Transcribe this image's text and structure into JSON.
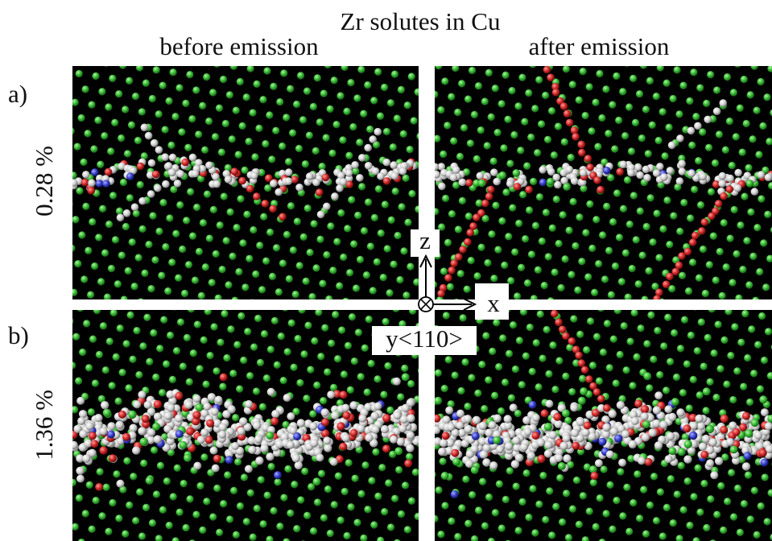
{
  "header": {
    "title": "Zr solutes in Cu",
    "columns": [
      "before emission",
      "after emission"
    ]
  },
  "rows": [
    {
      "label": "a)",
      "concentration": "0.28 %"
    },
    {
      "label": "b)",
      "concentration": "1.36 %"
    }
  ],
  "axes": {
    "z": "z",
    "x": "x",
    "y": "y<110>"
  }
}
